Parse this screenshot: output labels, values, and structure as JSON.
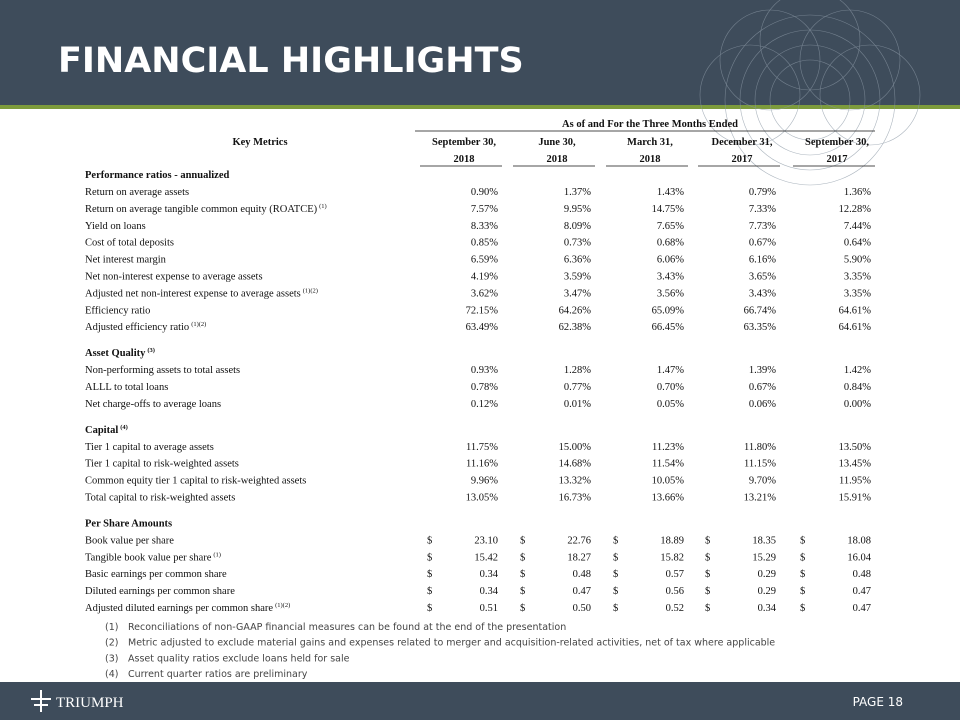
{
  "header": {
    "title": "FINANCIAL HIGHLIGHTS"
  },
  "table": {
    "group_header": "As of and For the Three Months Ended",
    "key_label": "Key Metrics",
    "columns": [
      {
        "line1": "September 30,",
        "line2": "2018"
      },
      {
        "line1": "June 30,",
        "line2": "2018"
      },
      {
        "line1": "March 31,",
        "line2": "2018"
      },
      {
        "line1": "December 31,",
        "line2": "2017"
      },
      {
        "line1": "September 30,",
        "line2": "2017"
      }
    ],
    "sections": [
      {
        "title": "Performance ratios - annualized",
        "rows": [
          {
            "label": "Return on average assets",
            "values": [
              "0.90%",
              "1.37%",
              "1.43%",
              "0.79%",
              "1.36%"
            ]
          },
          {
            "label": "Return on average tangible common equity (ROATCE)",
            "note": "(1)",
            "values": [
              "7.57%",
              "9.95%",
              "14.75%",
              "7.33%",
              "12.28%"
            ]
          },
          {
            "label": "Yield on loans",
            "values": [
              "8.33%",
              "8.09%",
              "7.65%",
              "7.73%",
              "7.44%"
            ]
          },
          {
            "label": "Cost of total deposits",
            "values": [
              "0.85%",
              "0.73%",
              "0.68%",
              "0.67%",
              "0.64%"
            ]
          },
          {
            "label": "Net interest margin",
            "values": [
              "6.59%",
              "6.36%",
              "6.06%",
              "6.16%",
              "5.90%"
            ]
          },
          {
            "label": "Net non-interest expense to average assets",
            "values": [
              "4.19%",
              "3.59%",
              "3.43%",
              "3.65%",
              "3.35%"
            ]
          },
          {
            "label": "Adjusted net non-interest expense to average assets",
            "note": "(1)(2)",
            "values": [
              "3.62%",
              "3.47%",
              "3.56%",
              "3.43%",
              "3.35%"
            ]
          },
          {
            "label": "Efficiency ratio",
            "values": [
              "72.15%",
              "64.26%",
              "65.09%",
              "66.74%",
              "64.61%"
            ]
          },
          {
            "label": "Adjusted efficiency ratio",
            "note": "(1)(2)",
            "values": [
              "63.49%",
              "62.38%",
              "66.45%",
              "63.35%",
              "64.61%"
            ]
          }
        ]
      },
      {
        "title": "Asset Quality",
        "note": "(3)",
        "rows": [
          {
            "label": "Non-performing assets to total assets",
            "values": [
              "0.93%",
              "1.28%",
              "1.47%",
              "1.39%",
              "1.42%"
            ]
          },
          {
            "label": "ALLL to total loans",
            "values": [
              "0.78%",
              "0.77%",
              "0.70%",
              "0.67%",
              "0.84%"
            ]
          },
          {
            "label": "Net charge-offs to average loans",
            "values": [
              "0.12%",
              "0.01%",
              "0.05%",
              "0.06%",
              "0.00%"
            ]
          }
        ]
      },
      {
        "title": "Capital",
        "note": "(4)",
        "rows": [
          {
            "label": "Tier 1 capital to average assets",
            "values": [
              "11.75%",
              "15.00%",
              "11.23%",
              "11.80%",
              "13.50%"
            ]
          },
          {
            "label": "Tier 1 capital to risk-weighted assets",
            "values": [
              "11.16%",
              "14.68%",
              "11.54%",
              "11.15%",
              "13.45%"
            ]
          },
          {
            "label": "Common equity tier 1 capital to risk-weighted assets",
            "values": [
              "9.96%",
              "13.32%",
              "10.05%",
              "9.70%",
              "11.95%"
            ]
          },
          {
            "label": "Total capital to risk-weighted assets",
            "values": [
              "13.05%",
              "16.73%",
              "13.66%",
              "13.21%",
              "15.91%"
            ]
          }
        ]
      },
      {
        "title": "Per Share Amounts",
        "currency": "$",
        "rows": [
          {
            "label": "Book value per share",
            "values": [
              "23.10",
              "22.76",
              "18.89",
              "18.35",
              "18.08"
            ]
          },
          {
            "label": "Tangible book value per share",
            "note": "(1)",
            "values": [
              "15.42",
              "18.27",
              "15.82",
              "15.29",
              "16.04"
            ]
          },
          {
            "label": "Basic earnings per common share",
            "values": [
              "0.34",
              "0.48",
              "0.57",
              "0.29",
              "0.48"
            ]
          },
          {
            "label": "Diluted earnings per common share",
            "values": [
              "0.34",
              "0.47",
              "0.56",
              "0.29",
              "0.47"
            ]
          },
          {
            "label": "Adjusted diluted earnings per common share",
            "note": "(1)(2)",
            "values": [
              "0.51",
              "0.50",
              "0.52",
              "0.34",
              "0.47"
            ]
          }
        ]
      }
    ]
  },
  "footnotes": [
    {
      "number": "(1)",
      "text": "Reconciliations of non-GAAP financial measures can be found at the end of the presentation"
    },
    {
      "number": "(2)",
      "text": "Metric adjusted to exclude material gains and expenses related to merger and acquisition-related activities, net of tax where applicable"
    },
    {
      "number": "(3)",
      "text": "Asset quality ratios exclude loans held for sale"
    },
    {
      "number": "(4)",
      "text": "Current quarter ratios are preliminary"
    }
  ],
  "footer": {
    "logo": "TRIUMPH",
    "page": "PAGE 18"
  }
}
